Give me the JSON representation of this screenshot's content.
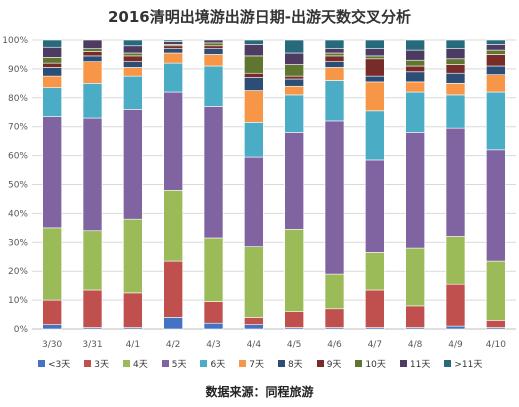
{
  "chart_data": {
    "type": "bar",
    "stacked": "percent",
    "title": "2016清明出境游出游日期-出游天数交叉分析",
    "categories": [
      "3/30",
      "3/31",
      "4/1",
      "4/2",
      "4/3",
      "4/4",
      "4/5",
      "4/6",
      "4/7",
      "4/8",
      "4/9",
      "4/10"
    ],
    "ylim": [
      0,
      100
    ],
    "yticks": [
      "0%",
      "10%",
      "20%",
      "30%",
      "40%",
      "50%",
      "60%",
      "70%",
      "80%",
      "90%",
      "100%"
    ],
    "grid": true,
    "legend_position": "bottom",
    "series": [
      {
        "name": "<3天",
        "color": "#4472C4",
        "values": [
          1.5,
          0.5,
          0.5,
          4,
          2,
          1.5,
          0.5,
          0.5,
          0.5,
          0.5,
          1,
          0.5
        ]
      },
      {
        "name": "3天",
        "color": "#C0504D",
        "values": [
          8.5,
          13,
          12,
          19.5,
          7.5,
          2.5,
          5.5,
          6.5,
          13,
          7.5,
          14.5,
          2.5
        ]
      },
      {
        "name": "4天",
        "color": "#9BBB59",
        "values": [
          25,
          20.5,
          25.5,
          24.5,
          22,
          24.5,
          28.5,
          12,
          13,
          20,
          16.5,
          20.5
        ]
      },
      {
        "name": "5天",
        "color": "#8064A2",
        "values": [
          38.5,
          39,
          38,
          34,
          45.5,
          31,
          33.5,
          53,
          32,
          40,
          37.5,
          38.5
        ]
      },
      {
        "name": "6天",
        "color": "#4BACC6",
        "values": [
          10,
          12,
          11.5,
          10,
          14,
          12,
          13,
          14,
          17,
          14,
          11.5,
          20
        ]
      },
      {
        "name": "7天",
        "color": "#F79646",
        "values": [
          4,
          7.5,
          3,
          3.5,
          4,
          11,
          3,
          4.5,
          10,
          3.5,
          4,
          6
        ]
      },
      {
        "name": "8天",
        "color": "#2C4D75",
        "values": [
          3,
          2,
          2,
          1.5,
          2,
          4.5,
          2.5,
          2,
          2,
          3.5,
          3.5,
          3
        ]
      },
      {
        "name": "9天",
        "color": "#772C2A",
        "values": [
          1.5,
          1.5,
          2,
          1,
          1,
          1.5,
          1,
          2,
          6,
          2,
          3,
          4
        ]
      },
      {
        "name": "10天",
        "color": "#5F7530",
        "values": [
          2,
          1,
          1,
          0.5,
          1,
          6,
          4,
          1,
          1,
          2,
          2,
          1.5
        ]
      },
      {
        "name": "11天",
        "color": "#4D3B62",
        "values": [
          3.5,
          3,
          2.5,
          1,
          1,
          4,
          4,
          1.5,
          2.5,
          3.5,
          3.5,
          2
        ]
      },
      {
        "name": ">11天",
        "color": "#276A7C",
        "values": [
          3,
          0,
          2,
          0.5,
          0,
          1.5,
          4.5,
          3,
          3,
          3.5,
          3,
          1.5
        ]
      }
    ]
  },
  "source_text": "数据来源：同程旅游"
}
